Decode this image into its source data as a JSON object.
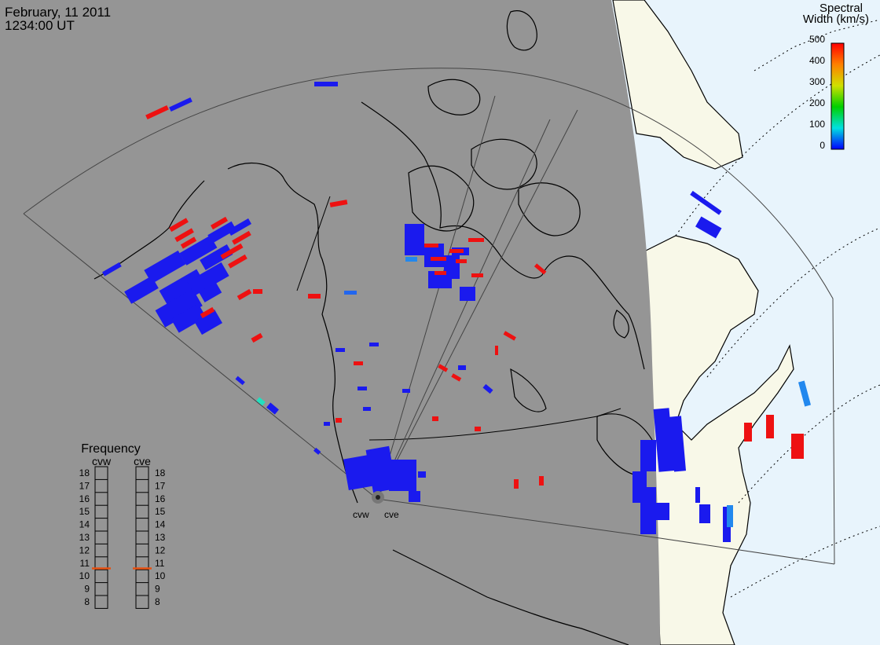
{
  "header": {
    "date": "February, 11 2011",
    "time": "1234:00 UT"
  },
  "legend": {
    "title_line1": "Spectral",
    "title_line2": "Width (km/s)",
    "ticks": [
      "500",
      "400",
      "300",
      "200",
      "100",
      "0"
    ]
  },
  "radars": {
    "west": "cvw",
    "east": "cve"
  },
  "frequency": {
    "title": "Frequency",
    "west_label": "cvw",
    "east_label": "cve",
    "levels": [
      "18",
      "17",
      "16",
      "15",
      "14",
      "13",
      "12",
      "11",
      "10",
      "9",
      "8"
    ],
    "west_mhz": 10.6,
    "east_mhz": 10.6
  },
  "colors": {
    "night": "#959595",
    "day_land": "#f8f8e8",
    "day_ocean": "#e8f4fc",
    "low_width": "#1a1aee",
    "high_width": "#ee1111",
    "marker": "#e85010"
  }
}
